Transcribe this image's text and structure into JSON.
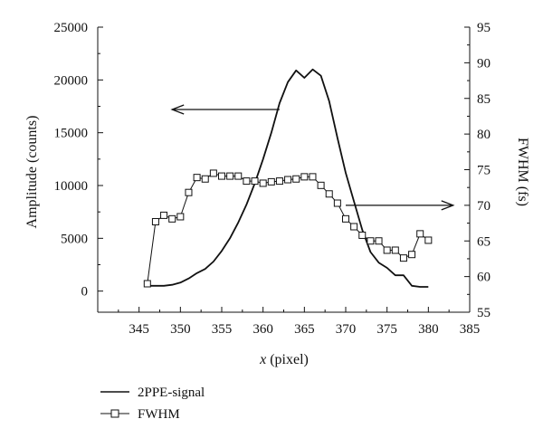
{
  "chart_data": {
    "type": "line",
    "title": "",
    "xlabel_var": "x",
    "xlabel_unit": " (pixel)",
    "ylabel_left": "Amplitude (counts)",
    "ylabel_right": "FWHM (fs)",
    "xlim": [
      340,
      385
    ],
    "ylim_left": [
      -2000,
      25000
    ],
    "ylim_right": [
      55,
      95
    ],
    "x_ticks": [
      345,
      350,
      355,
      360,
      365,
      370,
      375,
      380,
      385
    ],
    "y_left_ticks": [
      0,
      5000,
      10000,
      15000,
      20000,
      25000
    ],
    "y_right_ticks": [
      55,
      60,
      65,
      70,
      75,
      80,
      85,
      90,
      95
    ],
    "grid": false,
    "legend_placement": "bottom-left",
    "series": [
      {
        "name": "2PPE-signal",
        "axis": "left",
        "marker": "none",
        "points": [
          [
            346,
            500
          ],
          [
            347,
            500
          ],
          [
            348,
            500
          ],
          [
            349,
            600
          ],
          [
            350,
            800
          ],
          [
            351,
            1200
          ],
          [
            352,
            1700
          ],
          [
            353,
            2100
          ],
          [
            354,
            2800
          ],
          [
            355,
            3800
          ],
          [
            356,
            5000
          ],
          [
            357,
            6500
          ],
          [
            358,
            8200
          ],
          [
            359,
            10200
          ],
          [
            360,
            12500
          ],
          [
            361,
            15000
          ],
          [
            362,
            17800
          ],
          [
            363,
            19800
          ],
          [
            364,
            20900
          ],
          [
            365,
            20200
          ],
          [
            366,
            21000
          ],
          [
            367,
            20400
          ],
          [
            368,
            18000
          ],
          [
            369,
            14500
          ],
          [
            370,
            11200
          ],
          [
            371,
            8500
          ],
          [
            372,
            5800
          ],
          [
            373,
            3700
          ],
          [
            374,
            2700
          ],
          [
            375,
            2200
          ],
          [
            376,
            1500
          ],
          [
            377,
            1500
          ],
          [
            378,
            500
          ],
          [
            379,
            400
          ],
          [
            380,
            400
          ]
        ]
      },
      {
        "name": "FWHM",
        "axis": "right",
        "marker": "open-square",
        "points": [
          [
            346,
            59
          ],
          [
            347,
            67.7
          ],
          [
            348,
            68.6
          ],
          [
            349,
            68.1
          ],
          [
            350,
            68.4
          ],
          [
            351,
            71.8
          ],
          [
            352,
            73.9
          ],
          [
            353,
            73.7
          ],
          [
            354,
            74.5
          ],
          [
            355,
            74.1
          ],
          [
            356,
            74.1
          ],
          [
            357,
            74.1
          ],
          [
            358,
            73.4
          ],
          [
            359,
            73.4
          ],
          [
            360,
            73.1
          ],
          [
            361,
            73.3
          ],
          [
            362,
            73.4
          ],
          [
            363,
            73.6
          ],
          [
            364,
            73.7
          ],
          [
            365,
            74.0
          ],
          [
            366,
            74.0
          ],
          [
            367,
            72.8
          ],
          [
            368,
            71.6
          ],
          [
            369,
            70.3
          ],
          [
            370,
            68.1
          ],
          [
            371,
            67.0
          ],
          [
            372,
            65.8
          ],
          [
            373,
            65.0
          ],
          [
            374,
            65.0
          ],
          [
            375,
            63.7
          ],
          [
            376,
            63.7
          ],
          [
            377,
            62.6
          ],
          [
            378,
            63.1
          ],
          [
            379,
            66.0
          ],
          [
            380,
            65.1
          ]
        ]
      }
    ],
    "annotations": [
      {
        "type": "arrow",
        "target_axis": "left",
        "from": [
          362,
          17200
        ],
        "to": [
          349,
          17200
        ]
      },
      {
        "type": "arrow",
        "target_axis": "right",
        "from": [
          370,
          70.0
        ],
        "to": [
          383,
          70.0
        ]
      }
    ]
  }
}
